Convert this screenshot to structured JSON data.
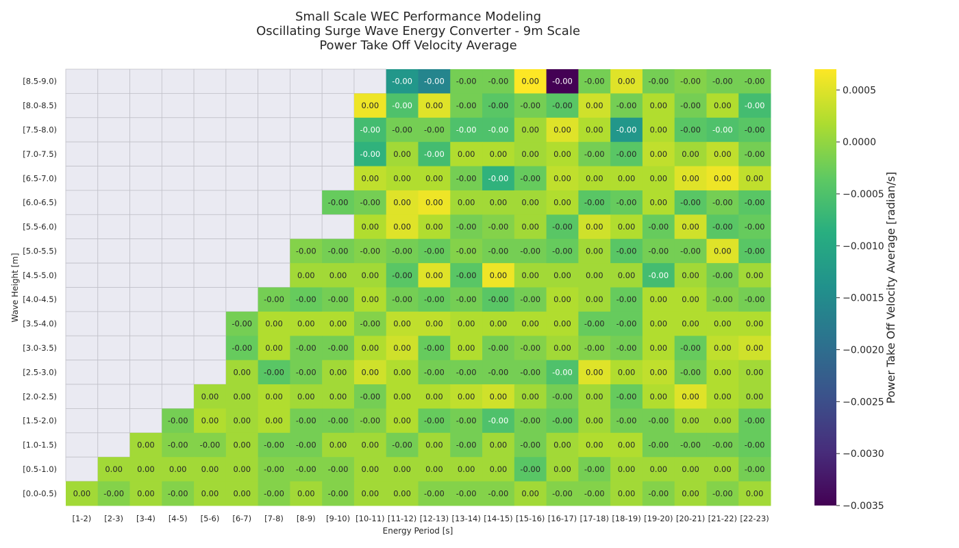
{
  "chart_data": {
    "type": "heatmap",
    "title_lines": [
      "Small Scale WEC Performance Modeling",
      "Oscillating Surge Wave Energy Converter - 9m Scale",
      "Power Take Off Velocity Average"
    ],
    "xlabel": "Energy Period [s]",
    "ylabel": "Wave Height [m]",
    "colorbar_label": "Power Take Off Velocity Average [radian/s]",
    "colormap": "viridis",
    "color_range": [
      -0.0035,
      0.0007
    ],
    "colorbar_ticks": [
      {
        "value": 0.0005,
        "label": "0.0005"
      },
      {
        "value": 0.0,
        "label": "0.0000"
      },
      {
        "value": -0.0005,
        "label": "−0.0005"
      },
      {
        "value": -0.001,
        "label": "−0.0010"
      },
      {
        "value": -0.0015,
        "label": "−0.0015"
      },
      {
        "value": -0.002,
        "label": "−0.0020"
      },
      {
        "value": -0.0025,
        "label": "−0.0025"
      },
      {
        "value": -0.003,
        "label": "−0.0030"
      },
      {
        "value": -0.0035,
        "label": "−0.0035"
      }
    ],
    "x_categories": [
      "[1-2)",
      "[2-3)",
      "[3-4)",
      "[4-5)",
      "[5-6)",
      "[6-7)",
      "[7-8)",
      "[8-9)",
      "[9-10)",
      "[10-11)",
      "[11-12)",
      "[12-13)",
      "[13-14)",
      "[14-15)",
      "[15-16)",
      "[16-17)",
      "[17-18)",
      "[18-19)",
      "[19-20)",
      "[20-21)",
      "[21-22)",
      "[22-23)"
    ],
    "y_categories": [
      "[8.5-9.0)",
      "[8.0-8.5)",
      "[7.5-8.0)",
      "[7.0-7.5)",
      "[6.5-7.0)",
      "[6.0-6.5)",
      "[5.5-6.0)",
      "[5.0-5.5)",
      "[4.5-5.0)",
      "[4.0-4.5)",
      "[3.5-4.0)",
      "[3.0-3.5)",
      "[2.5-3.0)",
      "[2.0-2.5)",
      "[1.5-2.0)",
      "[1.0-1.5)",
      "[0.5-1.0)",
      "[0.0-0.5)"
    ],
    "missing_color": "#eaeaf2",
    "values": [
      [
        null,
        null,
        null,
        null,
        null,
        null,
        null,
        null,
        null,
        null,
        -0.0013,
        -0.0016,
        -0.0002,
        -0.0002,
        0.0007,
        -0.0035,
        -0.0002,
        0.0005,
        -0.0002,
        -0.0001,
        -0.0002,
        -0.0002
      ],
      [
        null,
        null,
        null,
        null,
        null,
        null,
        null,
        null,
        null,
        0.0006,
        -0.0005,
        0.0005,
        -0.0002,
        -0.0004,
        -0.0002,
        -0.0004,
        0.0004,
        -0.0002,
        0.0002,
        -0.0002,
        0.0002,
        -0.0006
      ],
      [
        null,
        null,
        null,
        null,
        null,
        null,
        null,
        null,
        null,
        -0.0006,
        -0.0002,
        -0.0002,
        -0.0005,
        -0.0005,
        0.0001,
        0.0005,
        0.0002,
        -0.0013,
        0.0002,
        -0.0004,
        -0.0005,
        -0.0004
      ],
      [
        null,
        null,
        null,
        null,
        null,
        null,
        null,
        null,
        null,
        -0.0008,
        0.0001,
        -0.0006,
        0.0002,
        0.0002,
        0.0001,
        0.0002,
        -0.0002,
        -0.0004,
        0.0003,
        0.0001,
        0.0003,
        -0.0002
      ],
      [
        null,
        null,
        null,
        null,
        null,
        null,
        null,
        null,
        null,
        0.0003,
        0.0002,
        0.0002,
        -0.0002,
        -0.0008,
        -0.0003,
        0.0003,
        0.0002,
        0.0002,
        0.0002,
        0.0005,
        0.0006,
        0.0003
      ],
      [
        null,
        null,
        null,
        null,
        null,
        null,
        null,
        null,
        -0.0003,
        -0.0002,
        0.0005,
        0.0006,
        0.0001,
        0.0001,
        0.0001,
        0.0002,
        -0.0004,
        -0.0003,
        0.0002,
        -0.0004,
        -0.0002,
        -0.0004
      ],
      [
        null,
        null,
        null,
        null,
        null,
        null,
        null,
        null,
        null,
        0.0002,
        0.0005,
        0.0002,
        -0.0002,
        -0.0001,
        0.0001,
        -0.0004,
        0.0004,
        0.0002,
        -0.0003,
        0.0004,
        -0.0004,
        -0.0003
      ],
      [
        null,
        null,
        null,
        null,
        null,
        null,
        null,
        -0.0001,
        -0.0002,
        -0.0001,
        -0.0002,
        -0.0003,
        -0.0001,
        -0.0002,
        -0.0002,
        -0.0003,
        0.0001,
        -0.0004,
        -0.0002,
        -0.0002,
        0.0005,
        -0.0004
      ],
      [
        null,
        null,
        null,
        null,
        null,
        null,
        null,
        0.0001,
        0.0001,
        0.0001,
        -0.0004,
        0.0005,
        -0.0004,
        0.0006,
        0.0001,
        0.0001,
        0.0001,
        0.0001,
        -0.0006,
        0.0001,
        -0.0002,
        0.0001
      ],
      [
        null,
        null,
        null,
        null,
        null,
        null,
        -0.0002,
        -0.0003,
        -0.0002,
        0.0002,
        -0.0002,
        -0.0003,
        -0.0002,
        -0.0004,
        -0.0002,
        0.0002,
        0.0001,
        -0.0003,
        0.0002,
        0.0002,
        -0.0001,
        -0.0002
      ],
      [
        null,
        null,
        null,
        null,
        null,
        -0.0002,
        0.0002,
        0.0002,
        0.0002,
        -0.0001,
        0.0003,
        0.0003,
        0.0002,
        0.0002,
        0.0002,
        0.0002,
        -0.0003,
        -0.0003,
        0.0002,
        0.0002,
        0.0002,
        0.0002
      ],
      [
        null,
        null,
        null,
        null,
        null,
        -0.0003,
        0.0002,
        -0.0002,
        -0.0002,
        0.0002,
        0.0004,
        -0.0003,
        0.0002,
        -0.0002,
        -0.0001,
        0.0001,
        -0.0001,
        -0.0002,
        0.0002,
        -0.0003,
        0.0003,
        0.0004
      ],
      [
        null,
        null,
        null,
        null,
        null,
        0.0001,
        -0.0004,
        -0.0002,
        0.0001,
        0.0004,
        0.0002,
        -0.0002,
        -0.0002,
        -0.0002,
        -0.0002,
        -0.0005,
        0.0005,
        0.0002,
        0.0003,
        -0.0002,
        0.0002,
        0.0001
      ],
      [
        null,
        null,
        null,
        null,
        0.0001,
        0.0001,
        0.0002,
        0.0001,
        0.0001,
        -0.0002,
        0.0002,
        0.0002,
        0.0003,
        0.0004,
        0.0001,
        -0.0002,
        0.0001,
        -0.0003,
        0.0002,
        0.0005,
        0.0002,
        0.0001
      ],
      [
        null,
        null,
        null,
        -0.0002,
        0.0002,
        0.0001,
        0.0002,
        -0.0002,
        -0.0002,
        -0.0001,
        0.0002,
        -0.0003,
        -0.0002,
        -0.0005,
        -0.0002,
        -0.0003,
        0.0001,
        -0.0002,
        -0.0002,
        0.0001,
        0.0001,
        -0.0003
      ],
      [
        null,
        null,
        0.0001,
        -0.0001,
        -0.0001,
        0.0001,
        -0.0002,
        -0.0002,
        0.0001,
        0.0001,
        -0.0002,
        0.0001,
        -0.0002,
        0.0001,
        -0.0002,
        0.0001,
        0.0002,
        0.0002,
        -0.0002,
        -0.0002,
        -0.0002,
        -0.0003
      ],
      [
        null,
        0.0001,
        0.0001,
        0.0001,
        0.0001,
        0.0001,
        -0.0001,
        -0.0001,
        -0.0001,
        0.0001,
        0.0001,
        0.0001,
        0.0001,
        0.0001,
        -0.0004,
        0.0001,
        -0.0002,
        0.0001,
        0.0001,
        0.0001,
        0.0001,
        -0.0002
      ],
      [
        0.0001,
        -0.0001,
        0.0001,
        -0.0001,
        0.0001,
        0.0001,
        -0.0001,
        0.0001,
        -0.0001,
        0.0001,
        0.0001,
        -0.0001,
        -0.0001,
        -0.0001,
        0.0001,
        -0.0001,
        -0.0001,
        0.0001,
        -0.0001,
        0.0001,
        -0.0001,
        0.0001
      ]
    ]
  }
}
